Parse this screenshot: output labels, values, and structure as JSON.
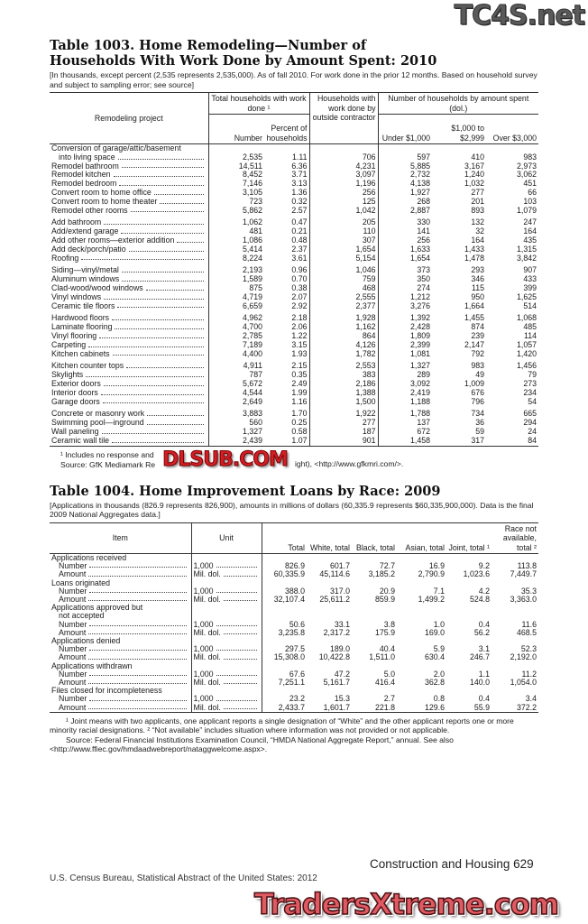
{
  "watermarks": {
    "top": "TC4S.net",
    "middle": "DLSUB.COM",
    "bottom": "TradersXtreme.com"
  },
  "table1003": {
    "title": "Table 1003. Home Remodeling—Number of Households With Work Done by Amount Spent: 2010",
    "note": "[In thousands, except percent (2,535 represents 2,535,000). As of fall 2010. For work done in the prior 12 months. Based on household survey and subject to sampling error; see source]",
    "headers": {
      "project": "Remodeling project",
      "total_group": "Total households with work done ¹",
      "number": "Number",
      "percent": "Percent of households",
      "contractor": "Households with work done by outside contractor",
      "amount_group": "Number of households by amount spent (dol.)",
      "under": "Under $1,000",
      "mid": "$1,000 to $2,999",
      "over": "Over $3,000"
    },
    "groups": [
      [
        [
          "Conversion of garage/attic/basement",
          "",
          "",
          "",
          "",
          "",
          ""
        ],
        [
          " into living space",
          "2,535",
          "1.11",
          "706",
          "597",
          "410",
          "983"
        ],
        [
          "Remodel bathroom",
          "14,511",
          "6.36",
          "4,231",
          "5,885",
          "3,167",
          "2,973"
        ],
        [
          "Remodel kitchen",
          "8,452",
          "3.71",
          "3,097",
          "2,732",
          "1,240",
          "3,062"
        ],
        [
          "Remodel bedroom",
          "7,146",
          "3.13",
          "1,196",
          "4,138",
          "1,032",
          "451"
        ],
        [
          "Convert room to home office",
          "3,105",
          "1.36",
          "256",
          "1,927",
          "277",
          "66"
        ],
        [
          "Convert room to home theater",
          "723",
          "0.32",
          "125",
          "268",
          "201",
          "103"
        ],
        [
          "Remodel other rooms",
          "5,862",
          "2.57",
          "1,042",
          "2,887",
          "893",
          "1,079"
        ]
      ],
      [
        [
          "Add bathroom",
          "1,062",
          "0.47",
          "205",
          "330",
          "132",
          "247"
        ],
        [
          "Add/extend garage",
          "481",
          "0.21",
          "110",
          "141",
          "32",
          "164"
        ],
        [
          "Add other rooms—exterior addition",
          "1,086",
          "0.48",
          "307",
          "256",
          "164",
          "435"
        ],
        [
          "Add deck/porch/patio",
          "5,414",
          "2.37",
          "1,654",
          "1,633",
          "1,433",
          "1,315"
        ],
        [
          "Roofing",
          "8,224",
          "3.61",
          "5,154",
          "1,654",
          "1,478",
          "3,842"
        ]
      ],
      [
        [
          "Siding—vinyl/metal",
          "2,193",
          "0.96",
          "1,046",
          "373",
          "293",
          "907"
        ],
        [
          "Aluminum windows",
          "1,589",
          "0.70",
          "759",
          "350",
          "346",
          "433"
        ],
        [
          "Clad-wood/wood windows",
          "875",
          "0.38",
          "468",
          "274",
          "115",
          "399"
        ],
        [
          "Vinyl windows",
          "4,719",
          "2.07",
          "2,555",
          "1,212",
          "950",
          "1,625"
        ],
        [
          "Ceramic tile floors",
          "6,659",
          "2.92",
          "2,377",
          "3,276",
          "1,664",
          "514"
        ]
      ],
      [
        [
          "Hardwood floors",
          "4,962",
          "2.18",
          "1,928",
          "1,392",
          "1,455",
          "1,068"
        ],
        [
          "Laminate flooring",
          "4,700",
          "2.06",
          "1,162",
          "2,428",
          "874",
          "485"
        ],
        [
          "Vinyl flooring",
          "2,785",
          "1.22",
          "864",
          "1,809",
          "239",
          "114"
        ],
        [
          "Carpeting",
          "7,189",
          "3.15",
          "4,126",
          "2,399",
          "2,147",
          "1,057"
        ],
        [
          "Kitchen cabinets",
          "4,400",
          "1.93",
          "1,782",
          "1,081",
          "792",
          "1,420"
        ]
      ],
      [
        [
          "Kitchen counter tops",
          "4,911",
          "2.15",
          "2,553",
          "1,327",
          "983",
          "1,456"
        ],
        [
          "Skylights",
          "787",
          "0.35",
          "383",
          "289",
          "49",
          "79"
        ],
        [
          "Exterior doors",
          "5,672",
          "2.49",
          "2,186",
          "3,092",
          "1,009",
          "273"
        ],
        [
          "Interior doors",
          "4,544",
          "1.99",
          "1,388",
          "2,419",
          "676",
          "234"
        ],
        [
          "Garage doors",
          "2,649",
          "1.16",
          "1,500",
          "1,188",
          "796",
          "54"
        ]
      ],
      [
        [
          "Concrete or masonry work",
          "3,883",
          "1.70",
          "1,922",
          "1,788",
          "734",
          "665"
        ],
        [
          "Swimming pool—inground",
          "560",
          "0.25",
          "277",
          "137",
          "36",
          "294"
        ],
        [
          "Wall paneling",
          "1,327",
          "0.58",
          "187",
          "672",
          "59",
          "24"
        ],
        [
          "Ceramic wall tile",
          "2,439",
          "1.07",
          "901",
          "1,458",
          "317",
          "84"
        ]
      ]
    ],
    "footnote": "¹ Includes no response and",
    "source": "Source: GfK Mediamark Re",
    "source_tail": "ight), <http://www.gfkmri.com/>."
  },
  "table1004": {
    "title": "Table 1004. Home Improvement Loans by Race: 2009",
    "note": "[Applications in thousands (826.9 represents 826,900), amounts in millions of dollars (60,335.9 represents $60,335,900,000). Data is the final 2009 National Aggregates data.]",
    "headers": [
      "Item",
      "Unit",
      "Total",
      "White, total",
      "Black, total",
      "Asian, total",
      "Joint, total ¹",
      "Race not available, total ²"
    ],
    "rows": [
      [
        "Applications received",
        null
      ],
      [
        "Number",
        "1,000",
        "826.9",
        "601.7",
        "72.7",
        "16.9",
        "9.2",
        "113.8"
      ],
      [
        "Amount",
        "Mil. dol.",
        "60,335.9",
        "45,114.6",
        "3,185.2",
        "2,790.9",
        "1,023.6",
        "7,449.7"
      ],
      [
        "Loans originated",
        null
      ],
      [
        "Number",
        "1,000",
        "388.0",
        "317.0",
        "20.9",
        "7.1",
        "4.2",
        "35.3"
      ],
      [
        "Amount",
        "Mil. dol.",
        "32,107.4",
        "25,611.2",
        "859.9",
        "1,499.2",
        "524.8",
        "3,363.0"
      ],
      [
        "Applications approved but",
        null
      ],
      [
        " not accepted",
        null
      ],
      [
        "Number",
        "1,000",
        "50.6",
        "33.1",
        "3.8",
        "1.0",
        "0.4",
        "11.6"
      ],
      [
        "Amount",
        "Mil. dol.",
        "3,235.8",
        "2,317.2",
        "175.9",
        "169.0",
        "56.2",
        "468.5"
      ],
      [
        "Applications denied",
        null
      ],
      [
        "Number",
        "1,000",
        "297.5",
        "189.0",
        "40.4",
        "5.9",
        "3.1",
        "52.3"
      ],
      [
        "Amount",
        "Mil. dol.",
        "15,308.0",
        "10,422.8",
        "1,511.0",
        "630.4",
        "246.7",
        "2,192.0"
      ],
      [
        "Applications withdrawn",
        null
      ],
      [
        "Number",
        "1,000",
        "67.6",
        "47.2",
        "5.0",
        "2.0",
        "1.1",
        "11.2"
      ],
      [
        "Amount",
        "Mil. dol.",
        "7,251.1",
        "5,161.7",
        "416.4",
        "362.8",
        "140.0",
        "1,054.0"
      ],
      [
        "Files closed for incompleteness",
        null
      ],
      [
        "Number",
        "1,000",
        "23.2",
        "15.3",
        "2.7",
        "0.8",
        "0.4",
        "3.4"
      ],
      [
        "Amount",
        "Mil. dol.",
        "2,433.7",
        "1,601.7",
        "221.8",
        "129.6",
        "55.9",
        "372.2"
      ]
    ],
    "footnote": "¹ Joint means with two applicants, one applicant reports a single designation of “White” and the other applicant reports one or more minority racial designations. ² “Not available” includes situation where information was not provided or not applicable.",
    "source": "Source: Federal Financial Institutions Examination Council, “HMDA National Aggregate Report,” annual. See also <http://www.ffiec.gov/hmdaadwebreport/nataggwelcome.aspx>."
  },
  "footer": {
    "section": "Construction and Housing  629",
    "source": "U.S. Census Bureau, Statistical Abstract of the United States: 2012"
  }
}
